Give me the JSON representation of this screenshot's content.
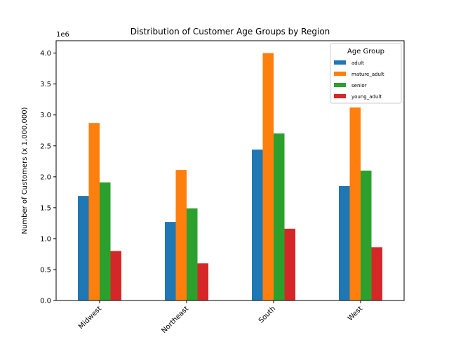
{
  "chart_data": {
    "type": "bar",
    "title": "Distribution of Customer Age Groups by Region",
    "xlabel": "",
    "ylabel": "Number of Customers (x 1,000,000)",
    "offset_label": "1e6",
    "categories": [
      "Midwest",
      "Northeast",
      "South",
      "West"
    ],
    "ylim": [
      0,
      4200000
    ],
    "yticks": [
      0,
      500000,
      1000000,
      1500000,
      2000000,
      2500000,
      3000000,
      3500000,
      4000000
    ],
    "ytick_labels": [
      "0.0",
      "0.5",
      "1.0",
      "1.5",
      "2.0",
      "2.5",
      "3.0",
      "3.5",
      "4.0"
    ],
    "grid": false,
    "legend": {
      "title": "Age Group",
      "placement": "top-right"
    },
    "series": [
      {
        "name": "adult",
        "color": "#1f77b4",
        "values": [
          1690000,
          1270000,
          2440000,
          1850000
        ]
      },
      {
        "name": "mature_adult",
        "color": "#ff7f0e",
        "values": [
          2870000,
          2110000,
          4000000,
          3120000
        ]
      },
      {
        "name": "senior",
        "color": "#2ca02c",
        "values": [
          1910000,
          1490000,
          2700000,
          2100000
        ]
      },
      {
        "name": "young_adult",
        "color": "#d62728",
        "values": [
          800000,
          600000,
          1160000,
          860000
        ]
      }
    ]
  }
}
